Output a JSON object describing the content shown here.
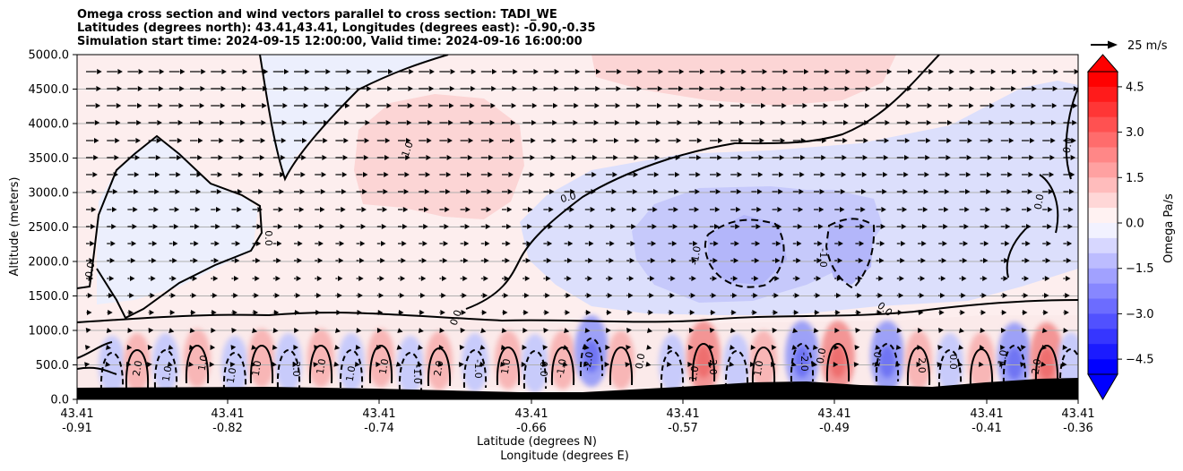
{
  "chart_data": {
    "type": "heatmap",
    "title_lines": [
      "Omega cross section and wind vectors parallel to cross section: TADI_WE",
      "Latitudes (degrees north): 43.41,43.41, Longitudes (degrees east): -0.90,-0.35",
      "Simulation start time: 2024-09-15 12:00:00, Valid time: 2024-09-16 16:00:00"
    ],
    "ylabel": "Altitude (meters)",
    "xlabel_lines": [
      "Latitude (degrees N)",
      "Longitude (degrees E)"
    ],
    "ylim": [
      0,
      5000
    ],
    "y_ticks": [
      "0.0",
      "500.0",
      "1000.0",
      "1500.0",
      "2000.0",
      "2500.0",
      "3000.0",
      "3500.0",
      "4000.0",
      "4500.0",
      "5000.0"
    ],
    "x_ticks": [
      {
        "lat": "43.41",
        "lon": "-0.91"
      },
      {
        "lat": "43.41",
        "lon": "-0.82"
      },
      {
        "lat": "43.41",
        "lon": "-0.74"
      },
      {
        "lat": "43.41",
        "lon": "-0.66"
      },
      {
        "lat": "43.41",
        "lon": "-0.57"
      },
      {
        "lat": "43.41",
        "lon": "-0.49"
      },
      {
        "lat": "43.41",
        "lon": "-0.41"
      },
      {
        "lat": "43.41",
        "lon": "-0.36"
      }
    ],
    "colorbar": {
      "label": "Omega Pa/s",
      "range": [
        -5,
        5
      ],
      "ticks": [
        "4.5",
        "3.0",
        "1.5",
        "0.0",
        "−1.5",
        "−3.0",
        "−4.5"
      ],
      "extend": "both",
      "colormap": "bwr"
    },
    "quiver_key": {
      "label": "25 m/s"
    },
    "contour_labels": [
      "0.0",
      "-1.0",
      "1.0",
      "2.0",
      "-2.0"
    ],
    "grid": "horizontal",
    "terrain_color": "#000000"
  }
}
